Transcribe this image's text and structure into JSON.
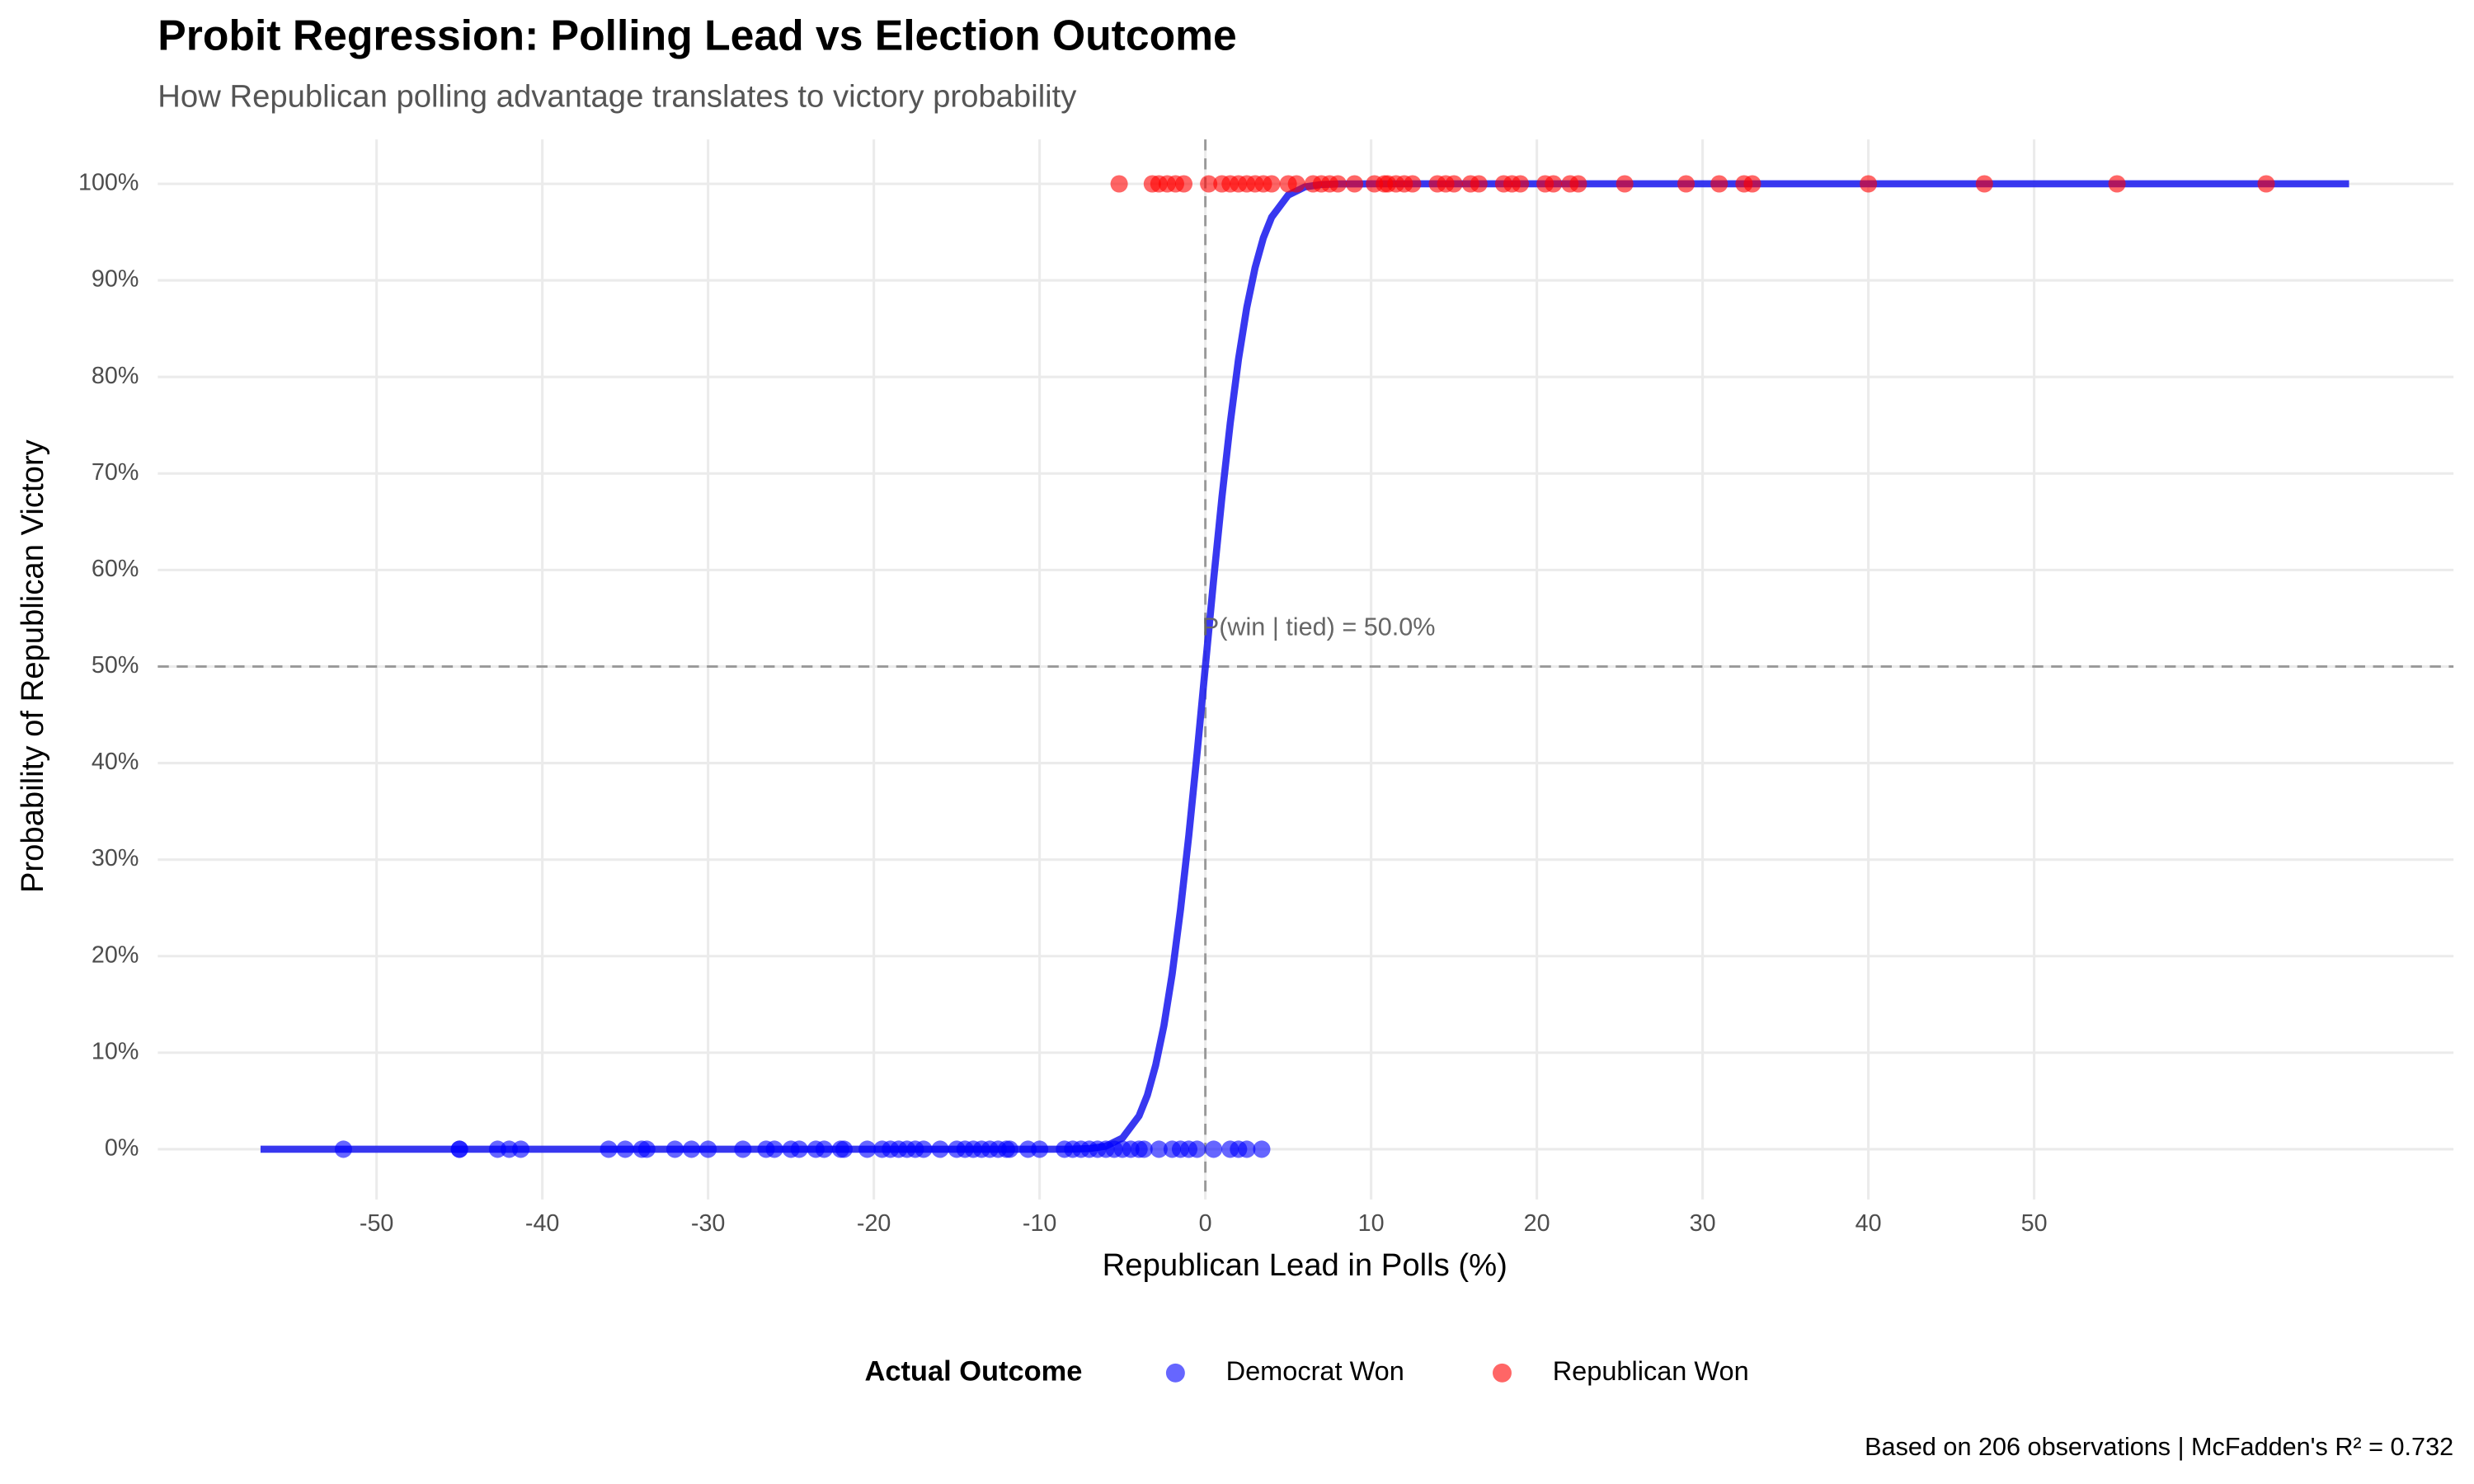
{
  "chart_data": {
    "type": "scatter",
    "title": "Probit Regression: Polling Lead vs Election Outcome",
    "subtitle": "How Republican polling advantage translates to victory probability",
    "x_label": "Republican Lead in Polls (%)",
    "y_label": "Probability of Republican Victory",
    "caption": "Based on 206 observations | McFadden's R² = 0.732",
    "annotation": "P(win | tied) = 50.0%",
    "legend_title": "Actual Outcome",
    "legend_position": "bottom",
    "grid": true,
    "xlim": [
      -63.2,
      75.3
    ],
    "ylim": [
      -5.2,
      104.6
    ],
    "xticks": [
      -50,
      -40,
      -30,
      -20,
      -10,
      0,
      10,
      20,
      30,
      40,
      50
    ],
    "yticks": [
      {
        "value": 0,
        "label": "0%"
      },
      {
        "value": 10,
        "label": "10%"
      },
      {
        "value": 20,
        "label": "20%"
      },
      {
        "value": 30,
        "label": "30%"
      },
      {
        "value": 40,
        "label": "40%"
      },
      {
        "value": 50,
        "label": "50%"
      },
      {
        "value": 60,
        "label": "60%"
      },
      {
        "value": 70,
        "label": "70%"
      },
      {
        "value": 80,
        "label": "80%"
      },
      {
        "value": 90,
        "label": "90%"
      },
      {
        "value": 100,
        "label": "100%"
      }
    ],
    "vline": 0,
    "hline": 50,
    "series": [
      {
        "name": "Democrat Won",
        "color": "#0000ff",
        "x": [
          -52,
          -45,
          -45,
          -42.7,
          -42,
          -41.3,
          -36,
          -35,
          -34,
          -33.7,
          -32,
          -31,
          -30,
          -27.9,
          -26.5,
          -26,
          -25,
          -24.5,
          -23.5,
          -23,
          -22,
          -21.8,
          -20.4,
          -19.5,
          -19,
          -18.5,
          -18,
          -17.5,
          -17,
          -16,
          -15,
          -14.5,
          -14,
          -13.5,
          -13,
          -12.5,
          -12,
          -11.8,
          -10.7,
          -10,
          -8.5,
          -8,
          -7.5,
          -7,
          -6.5,
          -6,
          -5.5,
          -5,
          -4.5,
          -4,
          -3.7,
          -2.8,
          -2,
          -1.5,
          -1,
          -0.5,
          0.5,
          1.5,
          2,
          2.5,
          3.4
        ],
        "values": [
          0,
          0,
          0,
          0,
          0,
          0,
          0,
          0,
          0,
          0,
          0,
          0,
          0,
          0,
          0,
          0,
          0,
          0,
          0,
          0,
          0,
          0,
          0,
          0,
          0,
          0,
          0,
          0,
          0,
          0,
          0,
          0,
          0,
          0,
          0,
          0,
          0,
          0,
          0,
          0,
          0,
          0,
          0,
          0,
          0,
          0,
          0,
          0,
          0,
          0,
          0,
          0,
          0,
          0,
          0,
          0,
          0,
          0,
          0,
          0,
          0
        ]
      },
      {
        "name": "Republican Won",
        "color": "#ff0000",
        "x": [
          -5.2,
          -3.2,
          -2.8,
          -2.3,
          -1.8,
          -1.3,
          0.2,
          1,
          1.5,
          2,
          2.5,
          3,
          3.5,
          4,
          5,
          5.5,
          6.5,
          7,
          7.5,
          8,
          9,
          10.2,
          10.8,
          11,
          11.5,
          12,
          12.5,
          14,
          14.5,
          15,
          16,
          16.5,
          18,
          18.5,
          19,
          20.5,
          21,
          22,
          22.5,
          25.3,
          29,
          31,
          32.5,
          33,
          40,
          47,
          55,
          64
        ],
        "values": [
          100,
          100,
          100,
          100,
          100,
          100,
          100,
          100,
          100,
          100,
          100,
          100,
          100,
          100,
          100,
          100,
          100,
          100,
          100,
          100,
          100,
          100,
          100,
          100,
          100,
          100,
          100,
          100,
          100,
          100,
          100,
          100,
          100,
          100,
          100,
          100,
          100,
          100,
          100,
          100,
          100,
          100,
          100,
          100,
          100,
          100,
          100,
          100
        ]
      }
    ],
    "fit_line": {
      "color": "#2222ee",
      "x": [
        -57,
        -10,
        -8,
        -7,
        -6,
        -5,
        -4,
        -3.5,
        -3,
        -2.5,
        -2,
        -1.5,
        -1,
        -0.5,
        0,
        0.5,
        1,
        1.5,
        2,
        2.5,
        3,
        3.5,
        4,
        5,
        6,
        7,
        8,
        10,
        69
      ],
      "values": [
        0,
        0,
        0.01,
        0.07,
        0.32,
        1.16,
        3.45,
        5.59,
        8.69,
        12.8,
        18.16,
        24.8,
        32.47,
        41,
        50,
        59,
        67.53,
        75.2,
        81.84,
        87.2,
        91.31,
        94.41,
        96.55,
        98.84,
        99.68,
        99.93,
        99.99,
        100,
        100
      ]
    }
  }
}
